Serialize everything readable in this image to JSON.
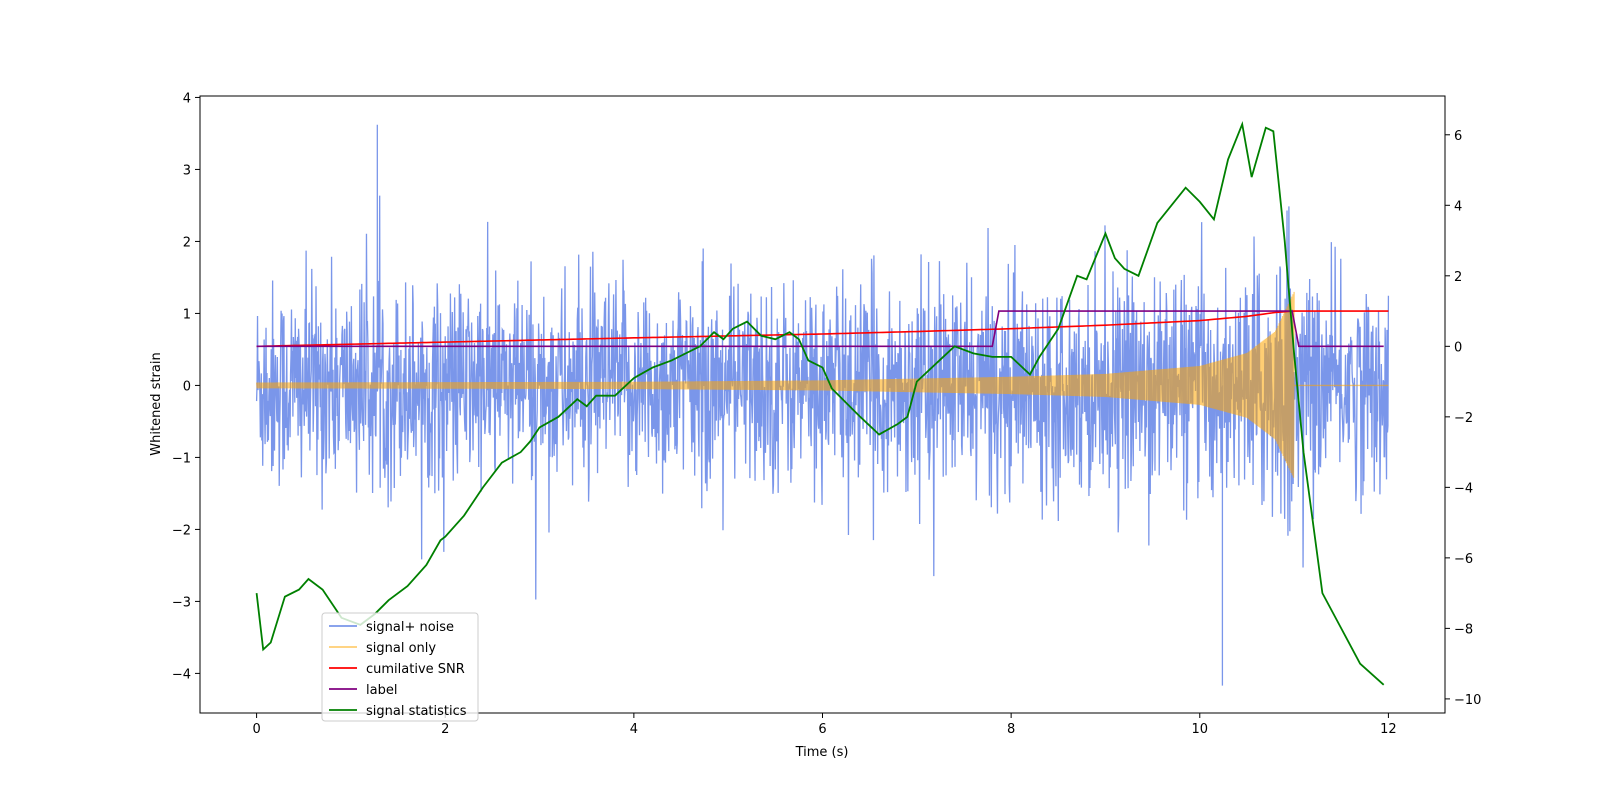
{
  "chart_data": {
    "type": "line",
    "title": "",
    "xlabel": "Time (s)",
    "ylabel": "Whitened strain",
    "y2label": "",
    "xlim": [
      -0.6,
      12.6
    ],
    "ylim": [
      -4.55,
      4.02
    ],
    "y2lim": [
      -10.4,
      7.1
    ],
    "x_ticks": [
      0,
      2,
      4,
      6,
      8,
      10,
      12
    ],
    "y_ticks": [
      -4,
      -3,
      -2,
      -1,
      0,
      1,
      2,
      3,
      4
    ],
    "y2_ticks": [
      -10,
      -8,
      -6,
      -4,
      -2,
      0,
      2,
      4,
      6
    ],
    "x_tick_labels": [
      "0",
      "2",
      "4",
      "6",
      "8",
      "10",
      "12"
    ],
    "y_tick_labels": [
      "−4",
      "−3",
      "−2",
      "−1",
      "0",
      "1",
      "2",
      "3",
      "4"
    ],
    "y2_tick_labels": [
      "−10",
      "−8",
      "−6",
      "−4",
      "−2",
      "0",
      "2",
      "4",
      "6"
    ],
    "grid": false,
    "legend_position": "lower-left",
    "series": [
      {
        "name": "signal+ noise",
        "axis": "left",
        "color": "#4169e1",
        "kind": "noise",
        "x_range": [
          0,
          12
        ],
        "baseline_std": 0.7,
        "max": 3.62,
        "min": -4.17
      },
      {
        "name": "signal only",
        "axis": "left",
        "color": "#ffa500",
        "kind": "chirp",
        "x_range": [
          0,
          11
        ],
        "amplitude_start": 0.04,
        "amplitude_at": {
          "x": [
            0,
            4,
            6,
            8,
            9,
            10,
            10.5,
            10.8,
            11.0
          ],
          "a": [
            0.04,
            0.05,
            0.07,
            0.12,
            0.16,
            0.27,
            0.45,
            0.75,
            1.3
          ]
        },
        "flat_after": {
          "x_range": [
            11,
            12
          ],
          "value": 0
        }
      },
      {
        "name": "cumilative SNR",
        "axis": "right",
        "color": "#ff0000",
        "x": [
          0,
          2,
          4,
          6,
          7,
          8,
          9,
          10,
          10.5,
          10.8,
          11.0,
          12.0
        ],
        "y": [
          0.0,
          0.12,
          0.24,
          0.35,
          0.42,
          0.5,
          0.6,
          0.73,
          0.85,
          0.96,
          1.0,
          1.0
        ]
      },
      {
        "name": "label",
        "axis": "right",
        "color": "#800080",
        "x": [
          0,
          7.8,
          7.87,
          10.98,
          11.05,
          11.95
        ],
        "y": [
          0,
          0,
          1,
          1,
          0,
          0
        ]
      },
      {
        "name": "signal statistics",
        "axis": "right",
        "color": "#008000",
        "x": [
          0.0,
          0.07,
          0.15,
          0.3,
          0.45,
          0.55,
          0.7,
          0.9,
          1.1,
          1.25,
          1.4,
          1.6,
          1.8,
          1.95,
          2.0,
          2.2,
          2.4,
          2.6,
          2.8,
          2.9,
          3.0,
          3.2,
          3.4,
          3.5,
          3.6,
          3.8,
          4.0,
          4.2,
          4.4,
          4.55,
          4.7,
          4.85,
          4.95,
          5.05,
          5.2,
          5.35,
          5.5,
          5.65,
          5.75,
          5.85,
          6.0,
          6.1,
          6.25,
          6.4,
          6.6,
          6.8,
          6.9,
          7.0,
          7.2,
          7.4,
          7.6,
          7.8,
          8.0,
          8.2,
          8.3,
          8.5,
          8.7,
          8.8,
          9.0,
          9.1,
          9.2,
          9.35,
          9.55,
          9.7,
          9.85,
          10.0,
          10.15,
          10.3,
          10.45,
          10.55,
          10.7,
          10.78,
          10.9,
          11.0,
          11.1,
          11.3,
          11.5,
          11.7,
          11.95
        ],
        "y": [
          -7.0,
          -8.6,
          -8.4,
          -7.1,
          -6.9,
          -6.6,
          -6.9,
          -7.7,
          -7.9,
          -7.6,
          -7.2,
          -6.8,
          -6.2,
          -5.5,
          -5.4,
          -4.8,
          -4.0,
          -3.3,
          -3.0,
          -2.7,
          -2.3,
          -2.0,
          -1.5,
          -1.7,
          -1.4,
          -1.4,
          -0.9,
          -0.6,
          -0.4,
          -0.2,
          0.0,
          0.4,
          0.2,
          0.5,
          0.7,
          0.3,
          0.2,
          0.4,
          0.2,
          -0.4,
          -0.6,
          -1.2,
          -1.6,
          -2.0,
          -2.5,
          -2.2,
          -2.0,
          -1.0,
          -0.5,
          0.0,
          -0.2,
          -0.3,
          -0.3,
          -0.8,
          -0.3,
          0.5,
          2.0,
          1.9,
          3.2,
          2.5,
          2.2,
          2.0,
          3.5,
          4.0,
          4.5,
          4.1,
          3.6,
          5.3,
          6.3,
          4.8,
          6.2,
          6.1,
          3.0,
          -0.2,
          -3.0,
          -7.0,
          -8.0,
          -9.0,
          -9.6
        ]
      }
    ]
  }
}
